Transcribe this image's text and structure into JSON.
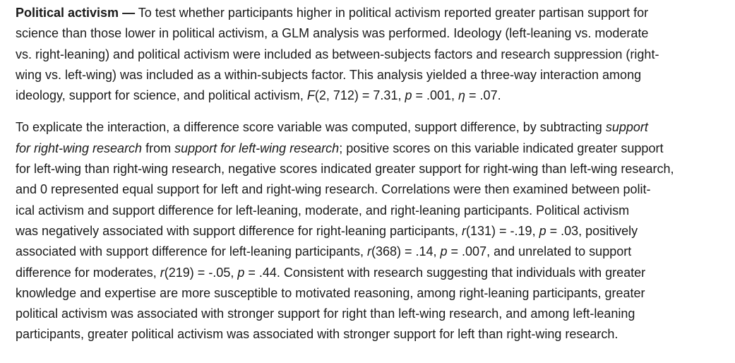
{
  "section": {
    "heading": "Political activism —",
    "paragraph1": [
      [
        {
          "t": " To test whether participants higher in political activism reported greater partisan support for"
        }
      ],
      [
        {
          "t": "science than those lower in political activism, a GLM analysis was performed. Ideology (left-leaning vs. moderate"
        }
      ],
      [
        {
          "t": "vs. right-leaning) and political activism were included as between-subjects factors and research suppression (right-"
        }
      ],
      [
        {
          "t": "wing vs. left-wing) was included as a within-subjects factor. This analysis yielded a three-way interaction among"
        }
      ],
      [
        {
          "t": "ideology, support for science, and political activism, "
        },
        {
          "t": "F",
          "i": true
        },
        {
          "t": "(2, 712) = 7.31, "
        },
        {
          "t": "p",
          "i": true
        },
        {
          "t": " = .001, "
        },
        {
          "t": "η",
          "i": true
        },
        {
          "t": " = .07."
        }
      ]
    ],
    "paragraph2": [
      [
        {
          "t": "To explicate the interaction, a difference score variable was computed, support difference, by subtracting "
        },
        {
          "t": "support",
          "i": true
        }
      ],
      [
        {
          "t": "for right-wing research",
          "i": true
        },
        {
          "t": " from "
        },
        {
          "t": "support for left-wing research",
          "i": true
        },
        {
          "t": "; positive scores on this variable indicated greater support"
        }
      ],
      [
        {
          "t": "for left-wing than right-wing research, negative scores indicated greater support for right-wing than left-wing research,"
        }
      ],
      [
        {
          "t": "and 0 represented equal support for left and right-wing research. Correlations were then examined between polit-"
        }
      ],
      [
        {
          "t": "ical activism and support difference for left-leaning, moderate, and right-leaning participants. Political activism"
        }
      ],
      [
        {
          "t": "was negatively associated with support difference for right-leaning participants, "
        },
        {
          "t": "r",
          "i": true
        },
        {
          "t": "(131) = -.19, "
        },
        {
          "t": "p",
          "i": true
        },
        {
          "t": " = .03, positively"
        }
      ],
      [
        {
          "t": "associated with support difference for left-leaning participants, "
        },
        {
          "t": "r",
          "i": true
        },
        {
          "t": "(368) = .14, "
        },
        {
          "t": "p",
          "i": true
        },
        {
          "t": " = .007, and unrelated to support"
        }
      ],
      [
        {
          "t": "difference for moderates, "
        },
        {
          "t": "r",
          "i": true
        },
        {
          "t": "(219) = -.05, "
        },
        {
          "t": "p",
          "i": true
        },
        {
          "t": " = .44. Consistent with research suggesting that individuals with greater"
        }
      ],
      [
        {
          "t": "knowledge and expertise are more susceptible to motivated reasoning, among right-leaning participants, greater"
        }
      ],
      [
        {
          "t": "political activism was associated with stronger support for right than left-wing research, and among left-leaning"
        }
      ],
      [
        {
          "t": "participants, greater political activism was associated with stronger support for left than right-wing research."
        }
      ]
    ]
  }
}
